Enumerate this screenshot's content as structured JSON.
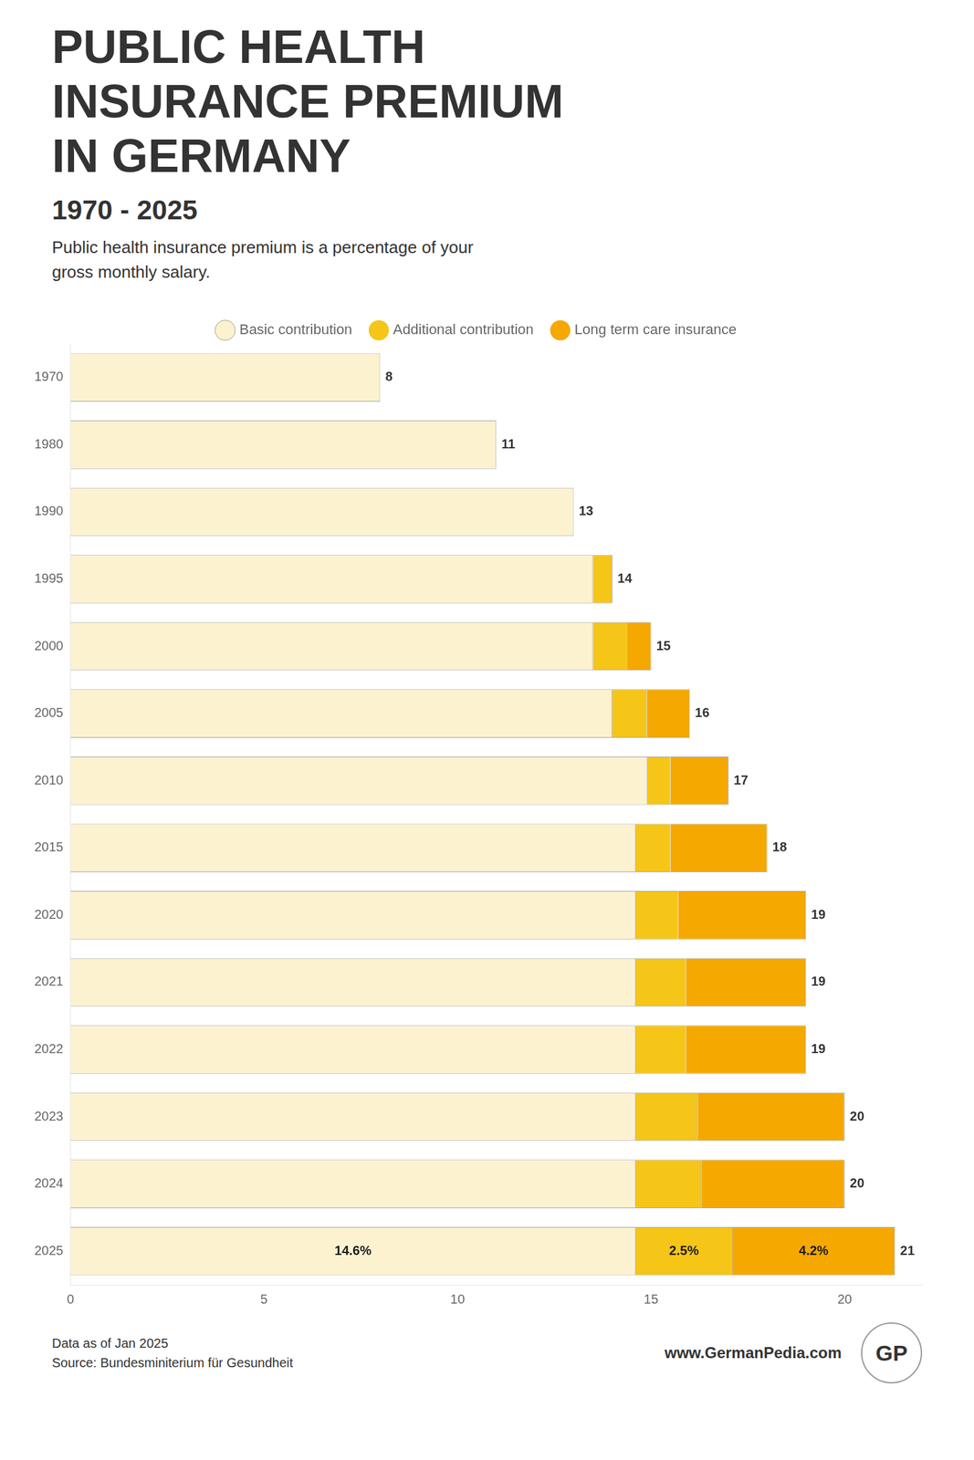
{
  "chart_data": {
    "type": "bar",
    "orientation": "horizontal",
    "stacked": true,
    "title": [
      "PUBLIC HEALTH",
      "INSURANCE PREMIUM",
      "IN GERMANY"
    ],
    "subtitle": "1970 - 2025",
    "annotations": [
      "Public health insurance premium is a percentage of your\ngross monthly salary.",
      "Data as of Jan 2025",
      "Source: Bundesminiterium für Gesundheit",
      "www.GermanPedia.com",
      "GP"
    ],
    "categories": [
      "1970",
      "1980",
      "1990",
      "1995",
      "2000",
      "2005",
      "2010",
      "2015",
      "2020",
      "2021",
      "2022",
      "2023",
      "2024",
      "2025"
    ],
    "series": [
      {
        "name": "Basic contribution",
        "color": "#fdf2d0",
        "values": [
          8,
          11,
          13,
          13.5,
          13.5,
          14.0,
          14.9,
          14.6,
          14.6,
          14.6,
          14.6,
          14.6,
          14.6,
          14.6
        ],
        "value_labels": [
          null,
          null,
          null,
          null,
          null,
          null,
          null,
          null,
          null,
          null,
          null,
          null,
          null,
          "14.6%"
        ]
      },
      {
        "name": "Additional contribution",
        "color": "#f5c518",
        "values": [
          0,
          0,
          0,
          0.5,
          0.9,
          0.9,
          0.6,
          0.9,
          1.1,
          1.3,
          1.3,
          1.6,
          1.7,
          2.5
        ],
        "value_labels": [
          null,
          null,
          null,
          null,
          null,
          null,
          null,
          null,
          null,
          null,
          null,
          null,
          null,
          "2.5%"
        ]
      },
      {
        "name": "Long term care insurance",
        "color": "#f5a800",
        "values": [
          0,
          0,
          0,
          0,
          0.6,
          1.1,
          1.5,
          2.5,
          3.3,
          3.1,
          3.1,
          3.8,
          3.7,
          4.2
        ],
        "value_labels": [
          null,
          null,
          null,
          null,
          null,
          null,
          null,
          null,
          null,
          null,
          null,
          null,
          null,
          "4.2%"
        ]
      }
    ],
    "totals": [
      8,
      11,
      13,
      14,
      15,
      16,
      17,
      18,
      19,
      19,
      19,
      20,
      20,
      21
    ],
    "xlim": [
      0,
      22
    ],
    "xticks": [
      0,
      5,
      10,
      15,
      20
    ],
    "grid": false,
    "legend": "top"
  }
}
